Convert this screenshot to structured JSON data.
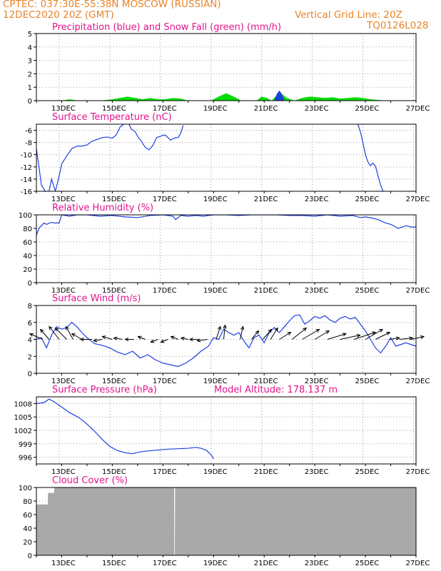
{
  "header": {
    "line1_left": "CPTEC:   037:30E-55:38N   MOSCOW (RUSSIAN)",
    "line2_left": "12DEC2020 20Z (GMT)",
    "line2_right": "Vertical Grid Line: 20Z",
    "line3_right": "TQ0126L028"
  },
  "colors": {
    "header_text": "#e8842a",
    "panel_title": "#e0148c",
    "line": "#1f3fe0",
    "snow": "#00dd00",
    "precip": "#1f3fe0",
    "cloud": "#a9a9a9",
    "grid": "#9a9a9a"
  },
  "chart_data": [
    {
      "type": "area",
      "title": "Precipitation (blue) and Snow Fall (green) (mm/h)",
      "ylim": [
        0,
        5
      ],
      "yticks": [
        "0",
        "1",
        "2",
        "3",
        "4",
        "5"
      ],
      "xticks": [
        "13DEC",
        "15DEC",
        "17DEC",
        "19DEC",
        "21DEC",
        "23DEC",
        "25DEC",
        "27DEC"
      ],
      "series": [
        {
          "name": "Snow Fall",
          "x": [
            13.0,
            13.3,
            13.7,
            14.0,
            14.5,
            15.0,
            15.3,
            15.6,
            15.9,
            16.2,
            16.5,
            16.8,
            17.1,
            17.4,
            17.7,
            18.0,
            18.3,
            18.6,
            18.9,
            19.2,
            19.5,
            19.8,
            20.1,
            20.4,
            20.7,
            20.9,
            21.1,
            21.3,
            21.6,
            21.9,
            22.2,
            22.5,
            22.8,
            23.1,
            23.4,
            23.7,
            24.0,
            24.3,
            24.6,
            24.9,
            25.2,
            25.5,
            25.8
          ],
          "y": [
            0.0,
            0.1,
            0.0,
            0.0,
            0.0,
            0.1,
            0.2,
            0.3,
            0.2,
            0.1,
            0.2,
            0.1,
            0.1,
            0.2,
            0.15,
            0.0,
            0.0,
            0.0,
            0.0,
            0.3,
            0.55,
            0.3,
            0.0,
            0.0,
            0.0,
            0.3,
            0.2,
            0.0,
            0.65,
            0.2,
            0.0,
            0.2,
            0.3,
            0.25,
            0.2,
            0.25,
            0.15,
            0.2,
            0.25,
            0.2,
            0.1,
            0.05,
            0.0
          ]
        },
        {
          "name": "Precipitation",
          "x": [
            21.4,
            21.5,
            21.6,
            21.7,
            21.8
          ],
          "y": [
            0.0,
            0.5,
            0.75,
            0.5,
            0.0
          ]
        }
      ]
    },
    {
      "type": "line",
      "title": "Surface Temperature (nC)",
      "ylim": [
        -16,
        -5
      ],
      "yticks": [
        "-16",
        "-14",
        "-12",
        "-10",
        "-8",
        "-6"
      ],
      "xticks": [
        "13DEC",
        "15DEC",
        "17DEC",
        "19DEC",
        "21DEC",
        "23DEC",
        "25DEC",
        "27DEC"
      ],
      "segments": [
        {
          "x": [
            12.0,
            12.1,
            12.2,
            12.35,
            12.5,
            12.6,
            12.75,
            12.9,
            13.0,
            13.2,
            13.4,
            13.6,
            13.8,
            14.0,
            14.2,
            14.4,
            14.6,
            14.8,
            15.0,
            15.15,
            15.3,
            15.45,
            15.6,
            15.75,
            15.9,
            16.0,
            16.15,
            16.3,
            16.45,
            16.6,
            16.75,
            16.9,
            17.0,
            17.1,
            17.2,
            17.3,
            17.4,
            17.5,
            17.6,
            17.7,
            17.8
          ],
          "y": [
            -9,
            -12,
            -15,
            -16,
            -16,
            -14,
            -16,
            -13.5,
            -11.5,
            -10.2,
            -9.0,
            -8.6,
            -8.6,
            -8.4,
            -7.8,
            -7.5,
            -7.2,
            -7.1,
            -7.3,
            -6.8,
            -5.5,
            -5.0,
            -4.5,
            -5.8,
            -6.2,
            -7.0,
            -7.8,
            -8.8,
            -9.2,
            -8.5,
            -7.2,
            -7.0,
            -6.8,
            -6.8,
            -7.2,
            -7.6,
            -7.4,
            -7.2,
            -7.2,
            -6.5,
            -5.2
          ]
        },
        {
          "x": [
            24.7,
            24.8,
            24.9,
            25.0,
            25.1,
            25.2,
            25.3,
            25.4,
            25.5,
            25.6,
            25.7
          ],
          "y": [
            -5.0,
            -6.2,
            -8.0,
            -10.0,
            -11.2,
            -11.8,
            -11.4,
            -11.9,
            -13.5,
            -15.0,
            -16.0
          ]
        }
      ]
    },
    {
      "type": "line",
      "title": "Relative Humidity (%)",
      "ylim": [
        0,
        100
      ],
      "yticks": [
        "0",
        "20",
        "40",
        "60",
        "80",
        "100"
      ],
      "xticks": [
        "13DEC",
        "15DEC",
        "17DEC",
        "19DEC",
        "21DEC",
        "23DEC",
        "25DEC",
        "27DEC"
      ],
      "x": [
        12.0,
        12.1,
        12.2,
        12.3,
        12.4,
        12.6,
        12.7,
        12.9,
        13.0,
        13.3,
        13.6,
        14.0,
        14.5,
        15.0,
        15.5,
        16.0,
        16.5,
        17.0,
        17.4,
        17.5,
        17.7,
        18.0,
        18.3,
        18.6,
        19.0,
        19.5,
        20.0,
        20.5,
        21.0,
        21.5,
        22.0,
        22.5,
        23.0,
        23.5,
        24.0,
        24.5,
        24.8,
        25.0,
        25.3,
        25.5,
        25.8,
        26.0,
        26.3,
        26.6,
        26.8,
        27.0
      ],
      "y": [
        70,
        80,
        84,
        88,
        86,
        89,
        88,
        88,
        100,
        98,
        100,
        100,
        98,
        99,
        97,
        96,
        99,
        100,
        98,
        93,
        99,
        98,
        99,
        98,
        100,
        100,
        99,
        100,
        100,
        100,
        99,
        99,
        98,
        100,
        98,
        99,
        96,
        97,
        95,
        93,
        88,
        86,
        80,
        84,
        82,
        82
      ]
    },
    {
      "type": "line",
      "title": "Surface Wind (m/s)",
      "ylim": [
        0,
        8
      ],
      "yticks": [
        "0",
        "2",
        "4",
        "6",
        "8"
      ],
      "xticks": [
        "13DEC",
        "15DEC",
        "17DEC",
        "19DEC",
        "21DEC",
        "23DEC",
        "25DEC",
        "27DEC"
      ],
      "x": [
        12.0,
        12.2,
        12.4,
        12.6,
        12.8,
        13.0,
        13.2,
        13.4,
        13.6,
        13.8,
        14.0,
        14.3,
        14.6,
        14.9,
        15.2,
        15.5,
        15.8,
        16.1,
        16.4,
        16.7,
        17.0,
        17.3,
        17.6,
        17.9,
        18.2,
        18.5,
        18.8,
        19.0,
        19.2,
        19.4,
        19.6,
        19.8,
        20.0,
        20.2,
        20.4,
        20.6,
        20.8,
        21.0,
        21.2,
        21.4,
        21.6,
        21.8,
        22.0,
        22.2,
        22.4,
        22.6,
        22.8,
        23.0,
        23.2,
        23.4,
        23.6,
        23.8,
        24.0,
        24.2,
        24.4,
        24.6,
        24.8,
        25.0,
        25.2,
        25.4,
        25.6,
        25.8,
        26.0,
        26.2,
        26.4,
        26.6,
        26.8,
        27.0
      ],
      "y": [
        4.0,
        4.2,
        3.0,
        4.5,
        5.5,
        5.2,
        5.4,
        6.0,
        5.5,
        4.8,
        4.2,
        3.5,
        3.3,
        3.0,
        2.5,
        2.2,
        2.6,
        1.8,
        2.2,
        1.6,
        1.2,
        1.0,
        0.8,
        1.2,
        1.8,
        2.6,
        3.2,
        4.2,
        4.0,
        5.2,
        4.8,
        4.5,
        4.8,
        3.8,
        3.0,
        4.2,
        4.5,
        3.6,
        4.8,
        5.4,
        4.8,
        5.5,
        6.2,
        6.8,
        6.9,
        5.8,
        6.2,
        6.7,
        6.5,
        6.8,
        6.3,
        6.0,
        6.5,
        6.7,
        6.4,
        6.6,
        5.8,
        5.0,
        4.0,
        3.0,
        2.4,
        3.2,
        4.2,
        3.2,
        3.4,
        3.6,
        3.4,
        3.2
      ]
    },
    {
      "type": "line",
      "title": "Surface Pressure (hPa)",
      "annotation": "Model Altitude: 178.137 m",
      "ylim": [
        994.5,
        1009.5
      ],
      "yticks": [
        "996",
        "999",
        "1002",
        "1005",
        "1008"
      ],
      "xticks": [
        "13DEC",
        "15DEC",
        "17DEC",
        "19DEC",
        "21DEC",
        "23DEC",
        "25DEC",
        "27DEC"
      ],
      "x": [
        12.0,
        12.3,
        12.5,
        12.7,
        12.9,
        13.1,
        13.3,
        13.5,
        13.7,
        14.0,
        14.3,
        14.6,
        14.9,
        15.2,
        15.5,
        15.8,
        16.1,
        16.4,
        16.8,
        17.2,
        17.6,
        18.0,
        18.3,
        18.5,
        18.7,
        18.9,
        19.0
      ],
      "y": [
        1008.0,
        1008.2,
        1009.0,
        1008.4,
        1007.6,
        1006.8,
        1006.0,
        1005.4,
        1004.8,
        1003.4,
        1001.8,
        1000.0,
        998.4,
        997.5,
        997.0,
        996.8,
        997.2,
        997.4,
        997.6,
        997.8,
        997.9,
        998.0,
        998.2,
        998.0,
        997.6,
        996.6,
        995.6
      ]
    },
    {
      "type": "area",
      "title": "Cloud Cover (%)",
      "ylim": [
        0,
        100
      ],
      "yticks": [
        "0",
        "20",
        "40",
        "60",
        "80",
        "100"
      ],
      "xticks": [
        "13DEC",
        "15DEC",
        "17DEC",
        "19DEC",
        "21DEC",
        "23DEC",
        "25DEC",
        "27DEC"
      ],
      "x": [
        12.0,
        12.45,
        12.46,
        12.7,
        12.71,
        17.44,
        17.45,
        17.47,
        17.48,
        27.0
      ],
      "y": [
        75,
        75,
        92,
        92,
        100,
        100,
        0,
        0,
        100,
        100
      ]
    }
  ]
}
